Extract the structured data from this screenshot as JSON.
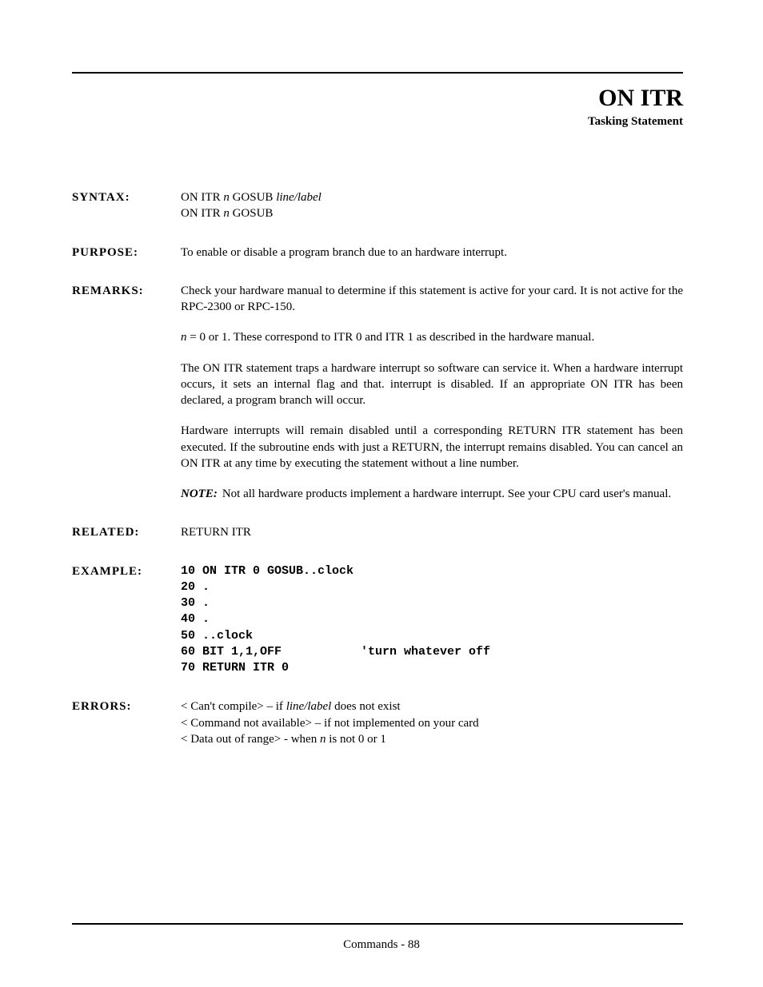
{
  "header": {
    "title": "ON ITR",
    "subtitle": "Tasking Statement"
  },
  "syntax": {
    "label": "SYNTAX:",
    "line1_a": "ON ITR ",
    "line1_n": "n",
    "line1_b": " GOSUB ",
    "line1_c": "line/label",
    "line2_a": "ON ITR ",
    "line2_n": "n",
    "line2_b": " GOSUB"
  },
  "purpose": {
    "label": "PURPOSE:",
    "text": "To enable or disable a program branch due to an hardware interrupt."
  },
  "remarks": {
    "label": "REMARKS:",
    "p1": "Check your hardware manual to determine if this statement is active for your card.  It is not active for the RPC-2300 or RPC-150.",
    "p2_a": "n",
    "p2_b": " =  0 or 1.  These correspond to ITR 0 and ITR 1 as described in the hardware manual.",
    "p3": "The ON ITR statement traps a hardware interrupt so software can service it.  When a hardware interrupt occurs, it sets an internal flag and that. interrupt is disabled.  If an appropriate ON ITR has been declared, a program branch will occur.",
    "p4": "Hardware interrupts will remain disabled until a corresponding RETURN ITR statement has been executed.  If the subroutine ends with just a RETURN, the interrupt remains disabled.  You can cancel an ON ITR at any time by executing the statement without a line number.",
    "note_label": "NOTE:",
    "note_text": "Not all hardware products implement a hardware interrupt.  See your CPU card user's manual."
  },
  "related": {
    "label": "RELATED:",
    "text": "RETURN ITR"
  },
  "example": {
    "label": "EXAMPLE:",
    "code": "10 ON ITR 0 GOSUB..clock\n20 .\n30 .\n40 .\n50 ..clock\n60 BIT 1,1,OFF           'turn whatever off\n70 RETURN ITR 0"
  },
  "errors": {
    "label": "ERRORS:",
    "e1_a": "< Can't compile>   –  if ",
    "e1_b": "line/label",
    "e1_c": " does not exist",
    "e2": "< Command not available>   –   if not implemented on your card",
    "e3_a": "< Data out of range>  - when ",
    "e3_b": "n",
    "e3_c": " is not 0 or 1"
  },
  "footer": "Commands - 88"
}
